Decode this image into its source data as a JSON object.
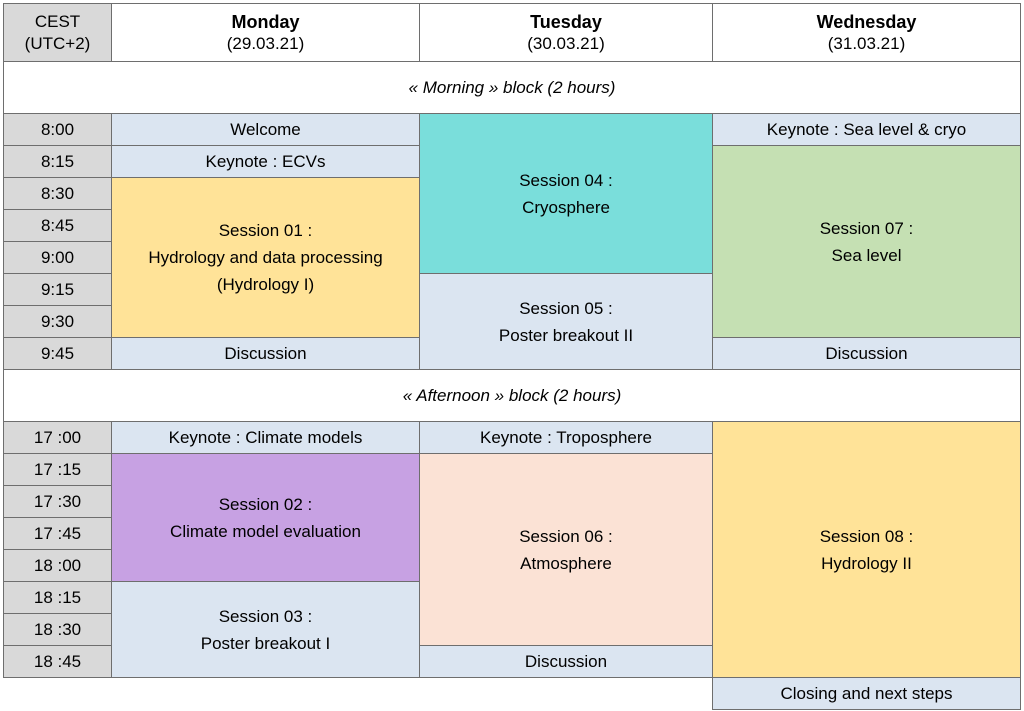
{
  "header": {
    "tz_line1": "CEST",
    "tz_line2": "(UTC+2)",
    "days": [
      {
        "name": "Monday",
        "date": "(29.03.21)"
      },
      {
        "name": "Tuesday",
        "date": "(30.03.21)"
      },
      {
        "name": "Wednesday",
        "date": "(31.03.21)"
      }
    ]
  },
  "morning": {
    "label": "« Morning » block (2 hours)",
    "times": [
      "8:00",
      "8:15",
      "8:30",
      "8:45",
      "9:00",
      "9:15",
      "9:30",
      "9:45"
    ],
    "monday": {
      "welcome": "Welcome",
      "keynote": "Keynote : ECVs",
      "session": [
        "Session 01 :",
        "Hydrology and data processing",
        "(Hydrology I)"
      ],
      "discussion": "Discussion"
    },
    "tuesday": {
      "session04": [
        "Session 04 :",
        "Cryosphere"
      ],
      "session05": [
        "Session 05 :",
        "Poster breakout II"
      ]
    },
    "wednesday": {
      "keynote": "Keynote : Sea level & cryo",
      "session": [
        "Session 07 :",
        "Sea level"
      ],
      "discussion": "Discussion"
    }
  },
  "afternoon": {
    "label": "« Afternoon » block (2 hours)",
    "times": [
      "17 :00",
      "17 :15",
      "17 :30",
      "17 :45",
      "18 :00",
      "18 :15",
      "18 :30",
      "18 :45"
    ],
    "monday": {
      "keynote": "Keynote : Climate models",
      "session02": [
        "Session 02 :",
        "Climate model evaluation"
      ],
      "session03": [
        "Session 03 :",
        "Poster breakout I"
      ]
    },
    "tuesday": {
      "keynote": "Keynote : Troposphere",
      "session": [
        "Session 06 :",
        "Atmosphere"
      ],
      "discussion": "Discussion"
    },
    "wednesday": {
      "session": [
        "Session 08 :",
        "Hydrology II"
      ],
      "closing": "Closing and next steps"
    }
  },
  "colors": {
    "time": "#d9d9d9",
    "blue": "#dbe5f1",
    "teal": "#7adedb",
    "green": "#c5e0b3",
    "yellow": "#ffe398",
    "purple": "#c7a1e3",
    "peach": "#fbe2d5"
  }
}
